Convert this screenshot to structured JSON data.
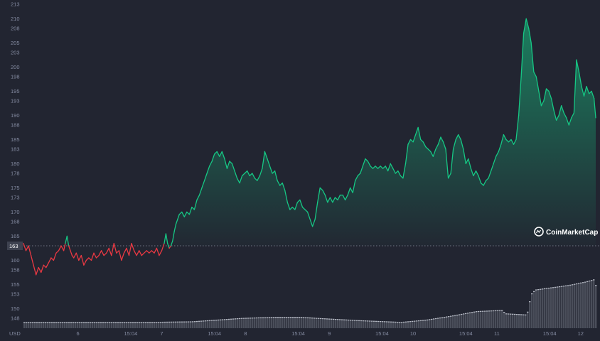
{
  "chart_data": {
    "type": "area",
    "currency_label": "USD",
    "watermark": "CoinMarketCap",
    "baseline_value": 163,
    "baseline_label": "163",
    "colors": {
      "background": "#222531",
      "up_line": "#16c784",
      "down_line": "#ea3943",
      "baseline": "#8a8f9e",
      "volume_bar": "#4a4e5a",
      "volume_bar_edge": "#b8bcc6",
      "tick_text": "#858ca2",
      "baseline_label_bg": "#3e4250",
      "baseline_label_text": "#ffffff"
    },
    "y_ticks": [
      "213",
      "210",
      "208",
      "205",
      "203",
      "200",
      "198",
      "195",
      "193",
      "190",
      "188",
      "185",
      "183",
      "180",
      "178",
      "175",
      "173",
      "170",
      "168",
      "165",
      "163",
      "160",
      "158",
      "155",
      "153",
      "150",
      "148"
    ],
    "x_ticks": [
      {
        "label": "6",
        "t": 0.65
      },
      {
        "label": "15:04",
        "t": 1.28
      },
      {
        "label": "7",
        "t": 1.65
      },
      {
        "label": "15:04",
        "t": 2.28
      },
      {
        "label": "8",
        "t": 2.65
      },
      {
        "label": "15:04",
        "t": 3.28
      },
      {
        "label": "9",
        "t": 3.65
      },
      {
        "label": "15:04",
        "t": 4.28
      },
      {
        "label": "10",
        "t": 4.65
      },
      {
        "label": "15:04",
        "t": 5.28
      },
      {
        "label": "11",
        "t": 5.65
      },
      {
        "label": "15:04",
        "t": 6.28
      },
      {
        "label": "12",
        "t": 6.65
      }
    ],
    "price_series": [
      [
        0.0,
        163.5
      ],
      [
        0.03,
        162.0
      ],
      [
        0.06,
        163.0
      ],
      [
        0.09,
        161.0
      ],
      [
        0.12,
        159.0
      ],
      [
        0.15,
        157.0
      ],
      [
        0.18,
        158.5
      ],
      [
        0.21,
        157.5
      ],
      [
        0.24,
        159.0
      ],
      [
        0.27,
        158.5
      ],
      [
        0.3,
        159.5
      ],
      [
        0.33,
        160.5
      ],
      [
        0.36,
        160.0
      ],
      [
        0.39,
        161.5
      ],
      [
        0.42,
        162.0
      ],
      [
        0.45,
        163.0
      ],
      [
        0.48,
        162.0
      ],
      [
        0.5,
        163.5
      ],
      [
        0.52,
        165.0
      ],
      [
        0.54,
        163.0
      ],
      [
        0.56,
        162.0
      ],
      [
        0.58,
        161.0
      ],
      [
        0.6,
        160.5
      ],
      [
        0.63,
        161.5
      ],
      [
        0.66,
        160.0
      ],
      [
        0.69,
        161.0
      ],
      [
        0.72,
        159.0
      ],
      [
        0.75,
        160.0
      ],
      [
        0.78,
        160.5
      ],
      [
        0.81,
        160.0
      ],
      [
        0.84,
        161.5
      ],
      [
        0.87,
        160.5
      ],
      [
        0.9,
        161.0
      ],
      [
        0.93,
        162.0
      ],
      [
        0.96,
        161.0
      ],
      [
        0.99,
        161.5
      ],
      [
        1.02,
        162.5
      ],
      [
        1.05,
        161.0
      ],
      [
        1.08,
        163.5
      ],
      [
        1.11,
        161.5
      ],
      [
        1.14,
        162.0
      ],
      [
        1.17,
        160.0
      ],
      [
        1.2,
        161.5
      ],
      [
        1.23,
        162.5
      ],
      [
        1.26,
        161.0
      ],
      [
        1.29,
        163.5
      ],
      [
        1.32,
        162.0
      ],
      [
        1.35,
        161.0
      ],
      [
        1.38,
        162.0
      ],
      [
        1.41,
        161.0
      ],
      [
        1.44,
        161.5
      ],
      [
        1.47,
        162.0
      ],
      [
        1.5,
        161.5
      ],
      [
        1.53,
        162.0
      ],
      [
        1.56,
        161.5
      ],
      [
        1.59,
        162.5
      ],
      [
        1.62,
        161.0
      ],
      [
        1.65,
        162.0
      ],
      [
        1.68,
        163.5
      ],
      [
        1.7,
        165.5
      ],
      [
        1.72,
        163.5
      ],
      [
        1.74,
        162.5
      ],
      [
        1.76,
        163.0
      ],
      [
        1.78,
        164.0
      ],
      [
        1.8,
        166.0
      ],
      [
        1.82,
        167.5
      ],
      [
        1.84,
        168.5
      ],
      [
        1.86,
        169.5
      ],
      [
        1.89,
        170.0
      ],
      [
        1.92,
        169.0
      ],
      [
        1.95,
        170.0
      ],
      [
        1.98,
        169.5
      ],
      [
        2.01,
        171.0
      ],
      [
        2.04,
        170.5
      ],
      [
        2.07,
        172.5
      ],
      [
        2.1,
        173.5
      ],
      [
        2.13,
        175.0
      ],
      [
        2.16,
        176.5
      ],
      [
        2.19,
        178.0
      ],
      [
        2.22,
        179.5
      ],
      [
        2.25,
        180.5
      ],
      [
        2.28,
        182.0
      ],
      [
        2.31,
        182.5
      ],
      [
        2.34,
        181.5
      ],
      [
        2.37,
        182.5
      ],
      [
        2.4,
        181.0
      ],
      [
        2.43,
        179.0
      ],
      [
        2.46,
        180.5
      ],
      [
        2.49,
        180.0
      ],
      [
        2.52,
        178.5
      ],
      [
        2.55,
        177.0
      ],
      [
        2.58,
        176.0
      ],
      [
        2.61,
        177.5
      ],
      [
        2.64,
        178.0
      ],
      [
        2.67,
        178.5
      ],
      [
        2.7,
        177.5
      ],
      [
        2.73,
        178.0
      ],
      [
        2.76,
        177.0
      ],
      [
        2.79,
        176.5
      ],
      [
        2.82,
        177.5
      ],
      [
        2.85,
        179.0
      ],
      [
        2.88,
        182.5
      ],
      [
        2.91,
        181.0
      ],
      [
        2.94,
        179.5
      ],
      [
        2.97,
        178.0
      ],
      [
        3.0,
        178.5
      ],
      [
        3.03,
        176.5
      ],
      [
        3.06,
        175.5
      ],
      [
        3.09,
        176.0
      ],
      [
        3.12,
        174.5
      ],
      [
        3.15,
        172.0
      ],
      [
        3.18,
        170.5
      ],
      [
        3.21,
        171.0
      ],
      [
        3.24,
        170.5
      ],
      [
        3.27,
        172.0
      ],
      [
        3.3,
        172.5
      ],
      [
        3.33,
        171.0
      ],
      [
        3.36,
        170.5
      ],
      [
        3.39,
        170.0
      ],
      [
        3.42,
        168.5
      ],
      [
        3.45,
        167.0
      ],
      [
        3.48,
        168.5
      ],
      [
        3.51,
        172.0
      ],
      [
        3.54,
        175.0
      ],
      [
        3.57,
        174.5
      ],
      [
        3.6,
        173.5
      ],
      [
        3.63,
        172.0
      ],
      [
        3.66,
        173.0
      ],
      [
        3.69,
        172.0
      ],
      [
        3.72,
        173.0
      ],
      [
        3.75,
        172.5
      ],
      [
        3.78,
        173.5
      ],
      [
        3.81,
        173.5
      ],
      [
        3.84,
        172.5
      ],
      [
        3.87,
        173.5
      ],
      [
        3.9,
        175.0
      ],
      [
        3.93,
        174.0
      ],
      [
        3.96,
        176.5
      ],
      [
        3.99,
        177.5
      ],
      [
        4.02,
        178.0
      ],
      [
        4.05,
        179.5
      ],
      [
        4.08,
        181.0
      ],
      [
        4.11,
        180.5
      ],
      [
        4.14,
        179.5
      ],
      [
        4.17,
        179.0
      ],
      [
        4.2,
        179.5
      ],
      [
        4.23,
        179.0
      ],
      [
        4.26,
        179.5
      ],
      [
        4.29,
        179.0
      ],
      [
        4.32,
        179.5
      ],
      [
        4.35,
        178.5
      ],
      [
        4.38,
        180.0
      ],
      [
        4.41,
        179.0
      ],
      [
        4.44,
        178.0
      ],
      [
        4.47,
        178.5
      ],
      [
        4.5,
        177.5
      ],
      [
        4.53,
        177.0
      ],
      [
        4.56,
        180.0
      ],
      [
        4.59,
        184.0
      ],
      [
        4.62,
        185.0
      ],
      [
        4.65,
        184.5
      ],
      [
        4.68,
        186.0
      ],
      [
        4.71,
        187.5
      ],
      [
        4.74,
        185.0
      ],
      [
        4.77,
        184.5
      ],
      [
        4.8,
        183.5
      ],
      [
        4.83,
        183.0
      ],
      [
        4.86,
        182.5
      ],
      [
        4.89,
        181.5
      ],
      [
        4.92,
        183.0
      ],
      [
        4.95,
        184.0
      ],
      [
        4.98,
        185.5
      ],
      [
        5.01,
        184.5
      ],
      [
        5.04,
        183.0
      ],
      [
        5.07,
        177.0
      ],
      [
        5.1,
        178.0
      ],
      [
        5.13,
        183.0
      ],
      [
        5.16,
        185.0
      ],
      [
        5.19,
        186.0
      ],
      [
        5.22,
        185.0
      ],
      [
        5.25,
        183.0
      ],
      [
        5.28,
        180.0
      ],
      [
        5.31,
        181.0
      ],
      [
        5.34,
        179.0
      ],
      [
        5.37,
        177.5
      ],
      [
        5.4,
        178.5
      ],
      [
        5.43,
        177.5
      ],
      [
        5.46,
        176.0
      ],
      [
        5.49,
        175.5
      ],
      [
        5.52,
        176.5
      ],
      [
        5.55,
        177.0
      ],
      [
        5.58,
        178.5
      ],
      [
        5.61,
        180.0
      ],
      [
        5.64,
        181.5
      ],
      [
        5.67,
        182.5
      ],
      [
        5.7,
        184.0
      ],
      [
        5.73,
        186.0
      ],
      [
        5.76,
        185.0
      ],
      [
        5.79,
        184.5
      ],
      [
        5.82,
        185.0
      ],
      [
        5.85,
        184.0
      ],
      [
        5.88,
        185.0
      ],
      [
        5.91,
        190.0
      ],
      [
        5.94,
        198.0
      ],
      [
        5.97,
        207.0
      ],
      [
        6.0,
        210.0
      ],
      [
        6.03,
        208.0
      ],
      [
        6.06,
        205.0
      ],
      [
        6.09,
        199.0
      ],
      [
        6.12,
        198.0
      ],
      [
        6.15,
        195.0
      ],
      [
        6.18,
        192.0
      ],
      [
        6.21,
        193.0
      ],
      [
        6.24,
        195.5
      ],
      [
        6.27,
        195.0
      ],
      [
        6.3,
        193.5
      ],
      [
        6.33,
        191.0
      ],
      [
        6.36,
        189.0
      ],
      [
        6.39,
        190.0
      ],
      [
        6.42,
        192.0
      ],
      [
        6.45,
        190.5
      ],
      [
        6.48,
        189.5
      ],
      [
        6.51,
        188.0
      ],
      [
        6.54,
        189.5
      ],
      [
        6.57,
        190.5
      ],
      [
        6.6,
        201.5
      ],
      [
        6.63,
        199.0
      ],
      [
        6.66,
        196.0
      ],
      [
        6.69,
        194.0
      ],
      [
        6.72,
        196.0
      ],
      [
        6.75,
        194.5
      ],
      [
        6.78,
        195.0
      ],
      [
        6.81,
        193.5
      ],
      [
        6.83,
        189.5
      ]
    ],
    "volume_series": [
      [
        0.0,
        0.055
      ],
      [
        1.5,
        0.055
      ],
      [
        2.0,
        0.06
      ],
      [
        2.3,
        0.075
      ],
      [
        2.6,
        0.09
      ],
      [
        3.0,
        0.1
      ],
      [
        3.3,
        0.1
      ],
      [
        3.5,
        0.09
      ],
      [
        4.0,
        0.07
      ],
      [
        4.5,
        0.055
      ],
      [
        4.8,
        0.075
      ],
      [
        5.1,
        0.11
      ],
      [
        5.4,
        0.15
      ],
      [
        5.7,
        0.16
      ],
      [
        5.75,
        0.13
      ],
      [
        6.0,
        0.12
      ],
      [
        6.05,
        0.3
      ],
      [
        6.1,
        0.34
      ],
      [
        6.3,
        0.36
      ],
      [
        6.5,
        0.38
      ],
      [
        6.7,
        0.41
      ],
      [
        6.8,
        0.43
      ],
      [
        6.83,
        0.36
      ]
    ]
  }
}
